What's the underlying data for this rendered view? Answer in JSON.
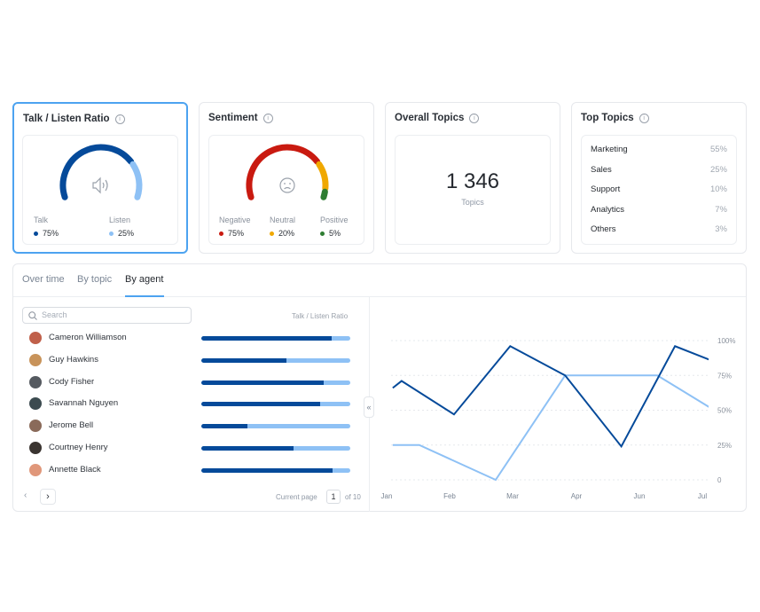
{
  "cards": {
    "talk": {
      "title": "Talk / Listen Ratio",
      "icon": "speaker-icon",
      "legend": [
        {
          "label": "Talk",
          "value": "75%",
          "pct": 75,
          "color": "#054a9a"
        },
        {
          "label": "Listen",
          "value": "25%",
          "pct": 25,
          "color": "#8ec1f5"
        }
      ]
    },
    "sentiment": {
      "title": "Sentiment",
      "icon": "sad-face-icon",
      "legend": [
        {
          "label": "Negative",
          "value": "75%",
          "pct": 75,
          "color": "#c91a10"
        },
        {
          "label": "Neutral",
          "value": "20%",
          "pct": 20,
          "color": "#f0a800"
        },
        {
          "label": "Positive",
          "value": "5%",
          "pct": 5,
          "color": "#2e7d32"
        }
      ]
    },
    "overall": {
      "title": "Overall Topics",
      "value": "1 346",
      "label": "Topics"
    },
    "top": {
      "title": "Top Topics",
      "items": [
        {
          "name": "Marketing",
          "pct": "55%"
        },
        {
          "name": "Sales",
          "pct": "25%"
        },
        {
          "name": "Support",
          "pct": "10%"
        },
        {
          "name": "Analytics",
          "pct": "7%"
        },
        {
          "name": "Others",
          "pct": "3%"
        }
      ]
    }
  },
  "tabs": [
    "Over time",
    "By topic",
    "By agent"
  ],
  "selected_tab": "By agent",
  "search": {
    "placeholder": "Search"
  },
  "column_header": "Talk / Listen Ratio",
  "agents": [
    {
      "name": "Cameron Williamson",
      "talk": 0.875,
      "avatar": "#c0604a"
    },
    {
      "name": "Guy Hawkins",
      "talk": 0.57,
      "avatar": "#c8935a"
    },
    {
      "name": "Cody Fisher",
      "talk": 0.82,
      "avatar": "#555a60"
    },
    {
      "name": "Savannah Nguyen",
      "talk": 0.8,
      "avatar": "#3c4b50"
    },
    {
      "name": "Jerome Bell",
      "talk": 0.31,
      "avatar": "#8a6a5a"
    },
    {
      "name": "Courtney Henry",
      "talk": 0.62,
      "avatar": "#3a3430"
    },
    {
      "name": "Annette Black",
      "talk": 0.88,
      "avatar": "#e0977a"
    }
  ],
  "pagination": {
    "label": "Current page",
    "page": "1",
    "of": "of 10"
  },
  "chart_data": {
    "type": "line",
    "categories": [
      "Jan",
      "Feb",
      "Mar",
      "Apr",
      "Jun",
      "Jul"
    ],
    "yticks": [
      "100%",
      "75%",
      "50%",
      "25%",
      "0"
    ],
    "ylim": [
      0,
      100
    ],
    "grid": true,
    "series": [
      {
        "color": "#054a9a",
        "points": [
          [
            -0.1,
            66
          ],
          [
            0.04,
            71
          ],
          [
            0.87,
            47
          ],
          [
            1.76,
            96
          ],
          [
            2.63,
            75
          ],
          [
            3.52,
            24
          ],
          [
            4.37,
            96
          ],
          [
            5.1,
            83
          ]
        ]
      },
      {
        "color": "#8ec1f5",
        "points": [
          [
            -0.1,
            25
          ],
          [
            0.32,
            25
          ],
          [
            1.53,
            0
          ],
          [
            2.63,
            75
          ],
          [
            4.09,
            75
          ],
          [
            5.1,
            47
          ]
        ]
      }
    ]
  }
}
